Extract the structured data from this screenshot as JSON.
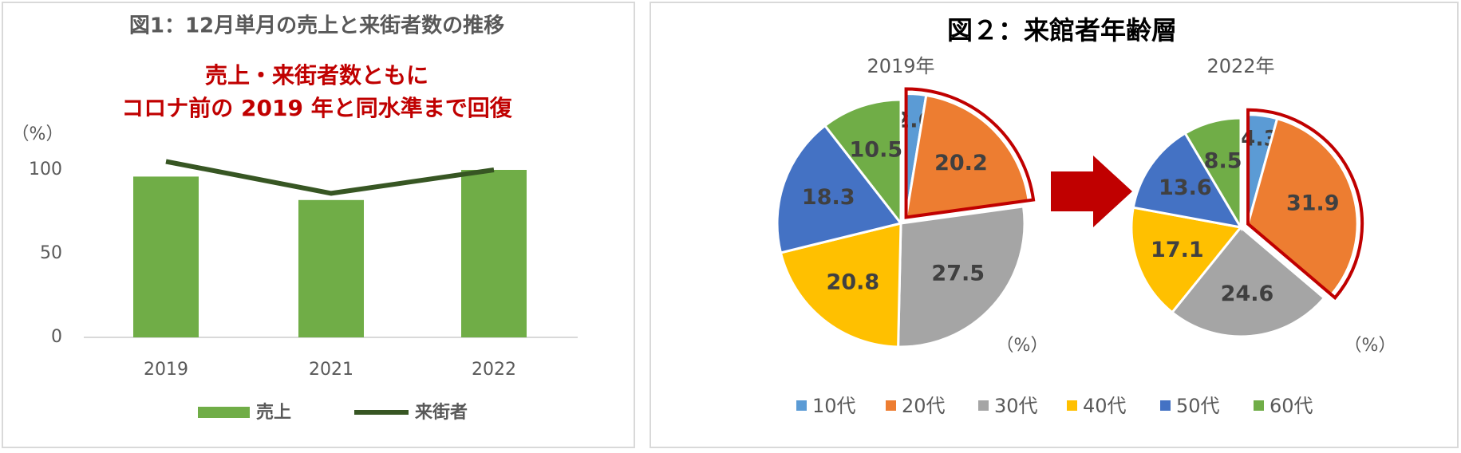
{
  "chart_data": [
    {
      "type": "bar",
      "title": "図1：12月単月の売上と来街者数の推移",
      "annotation": [
        "売上・来街者数ともに",
        "コロナ前の 2019 年と同水準まで回復"
      ],
      "y_label": "（%）",
      "categories": [
        "2019",
        "2021",
        "2022"
      ],
      "series": [
        {
          "name": "売上",
          "type": "bar",
          "color": "#70ad47",
          "values": [
            96,
            82,
            100
          ]
        },
        {
          "name": "来街者",
          "type": "line",
          "color": "#375623",
          "values": [
            105,
            86,
            100
          ]
        }
      ],
      "ylim": [
        0,
        110
      ],
      "yticks": [
        0,
        50,
        100
      ],
      "grid": false
    },
    {
      "type": "pie",
      "title": "図２：来館者年齢層",
      "unit_label": "（%）",
      "categories": [
        "10代",
        "20代",
        "30代",
        "40代",
        "50代",
        "60代"
      ],
      "colors": [
        "#5b9bd5",
        "#ed7d31",
        "#a5a5a5",
        "#ffc000",
        "#4472c4",
        "#70ad47"
      ],
      "pies": [
        {
          "name": "2019年",
          "values": [
            2.6,
            20.2,
            27.5,
            20.8,
            18.3,
            10.5
          ]
        },
        {
          "name": "2022年",
          "values": [
            4.3,
            31.9,
            24.6,
            17.1,
            13.6,
            8.5
          ]
        }
      ]
    }
  ]
}
